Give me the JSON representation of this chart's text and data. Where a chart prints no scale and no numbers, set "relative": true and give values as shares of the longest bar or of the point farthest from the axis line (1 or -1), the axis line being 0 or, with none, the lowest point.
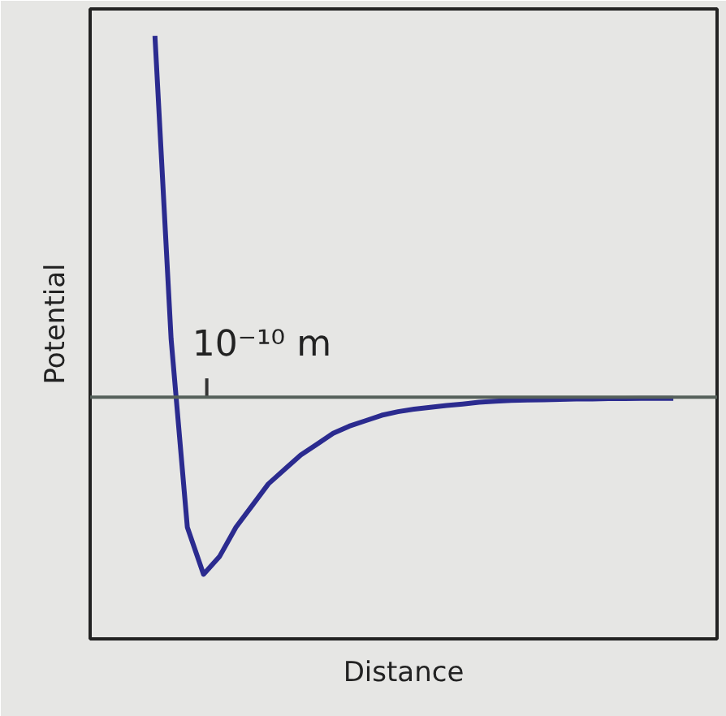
{
  "chart_data": {
    "type": "line",
    "relative": true,
    "xlabel": "Distance",
    "ylabel": "Potential",
    "categories": [
      null,
      null,
      null,
      null,
      null,
      null,
      null,
      null,
      null,
      null,
      null,
      null,
      null,
      null,
      null,
      null,
      null,
      null,
      null,
      null,
      null,
      null,
      null,
      null,
      null,
      null,
      null,
      null,
      null,
      null,
      null,
      null,
      null
    ],
    "series": [
      {
        "color": "#2b2b8f",
        "values": [
          1.0,
          0.16,
          -0.36,
          -0.49,
          -0.44,
          -0.36,
          -0.3,
          -0.24,
          -0.2,
          -0.16,
          -0.13,
          -0.1,
          -0.08,
          -0.065,
          -0.05,
          -0.04,
          -0.033,
          -0.028,
          -0.023,
          -0.019,
          -0.014,
          -0.011,
          -0.009,
          -0.008,
          -0.007,
          -0.006,
          -0.005,
          -0.005,
          -0.004,
          -0.004,
          -0.003,
          -0.003,
          -0.003
        ]
      }
    ],
    "ref_lines": [
      {
        "axis": "y",
        "value": 0,
        "color": "#55605a"
      }
    ],
    "annotations": [
      "10⁻¹⁰ m"
    ],
    "tick_labels": false,
    "grid": false,
    "marker": "none",
    "line_style": "solid"
  }
}
